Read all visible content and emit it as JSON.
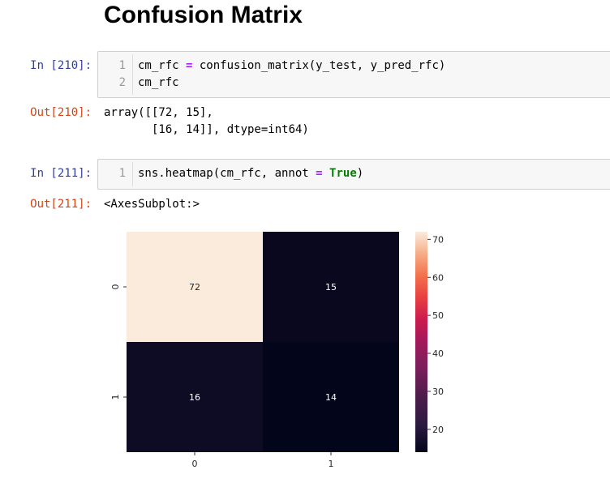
{
  "heading": "Confusion Matrix",
  "cells": [
    {
      "in_prompt": "In [210]:",
      "line_numbers": [
        "1",
        "2"
      ],
      "code": {
        "line1_a": "cm_rfc ",
        "line1_op": "=",
        "line1_b": " confusion_matrix(y_test, y_pred_rfc)",
        "line2": "cm_rfc"
      },
      "out_prompt": "Out[210]:",
      "output_lines": [
        "array([[72, 15],",
        "       [16, 14]], dtype=int64)"
      ]
    },
    {
      "in_prompt": "In [211]:",
      "line_numbers": [
        "1"
      ],
      "code": {
        "a": "sns.heatmap(cm_rfc, annot ",
        "op": "=",
        "sp": " ",
        "kw": "True",
        "close": ")"
      },
      "out_prompt": "Out[211]:",
      "output_lines": [
        "<AxesSubplot:>"
      ]
    }
  ],
  "chart_data": {
    "type": "heatmap",
    "x_tick_labels": [
      "0",
      "1"
    ],
    "y_tick_labels": [
      "0",
      "1"
    ],
    "values": [
      [
        72,
        15
      ],
      [
        16,
        14
      ]
    ],
    "annotations": [
      "72",
      "15",
      "16",
      "14"
    ],
    "colorbar": {
      "ticks": [
        "20",
        "30",
        "40",
        "50",
        "60",
        "70"
      ],
      "range": [
        14,
        72
      ]
    },
    "colors": {
      "high": "#faebdd",
      "low": "#03051a",
      "annot_light": "#ffffff",
      "annot_dark": "#262626"
    }
  }
}
